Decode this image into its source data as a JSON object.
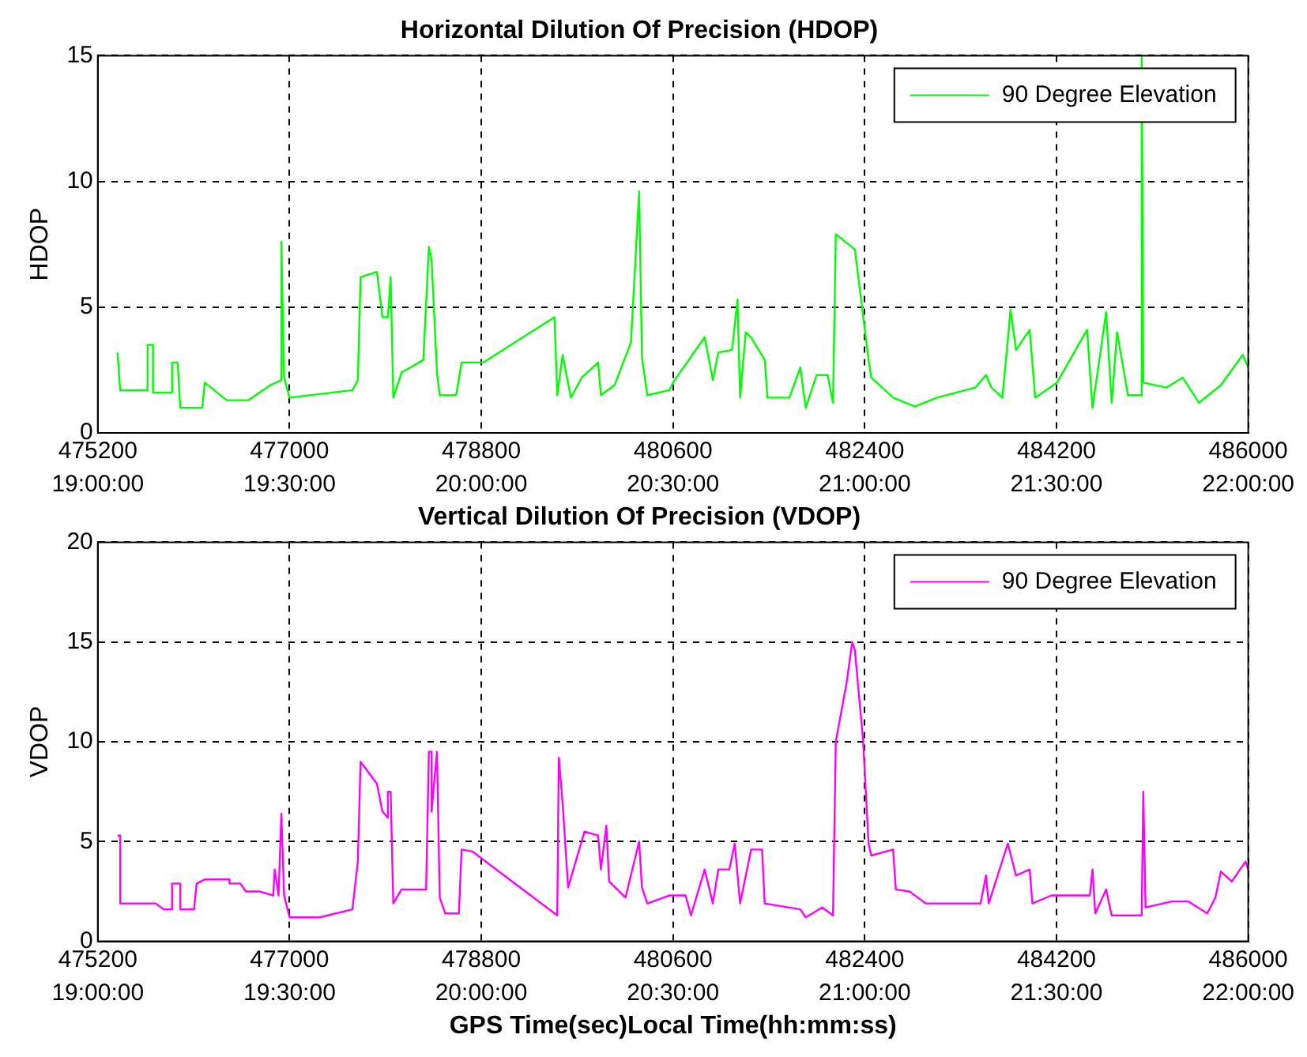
{
  "chart_data": [
    {
      "type": "line",
      "title": "Horizontal Dilution Of Precision (HDOP)",
      "ylabel": "HDOP",
      "xlim": [
        475200,
        486000
      ],
      "xticks": [
        475200,
        477000,
        478800,
        480600,
        482400,
        484200,
        486000
      ],
      "x2lim": [
        19,
        22
      ],
      "x2ticks": [
        {
          "value": 19,
          "label": "19:00:00"
        },
        {
          "value": 19.5,
          "label": "19:30:00"
        },
        {
          "value": 20,
          "label": "20:00:00"
        },
        {
          "value": 20.5,
          "label": "20:30:00"
        },
        {
          "value": 21,
          "label": "21:00:00"
        },
        {
          "value": 21.5,
          "label": "21:30:00"
        },
        {
          "value": 22,
          "label": "22:00:00"
        }
      ],
      "ylim": [
        0,
        15
      ],
      "yticks": [
        0,
        5,
        10,
        15
      ],
      "grid": true,
      "legend": "top right",
      "marker": "none",
      "line_style": "solid",
      "x": [
        475385,
        475410,
        475667,
        475667,
        475718,
        475718,
        475897,
        475897,
        475949,
        475974,
        476179,
        476205,
        476410,
        476615,
        476820,
        476923,
        476923,
        476949,
        477000,
        477590,
        477641,
        477667,
        477820,
        477872,
        477923,
        477949,
        477974,
        478051,
        478256,
        478308,
        478333,
        478384,
        478410,
        478564,
        478615,
        478820,
        479487,
        479513,
        479564,
        479641,
        479743,
        479897,
        479923,
        480051,
        480205,
        480282,
        480308,
        480359,
        480564,
        480615,
        480897,
        480974,
        481025,
        481154,
        481205,
        481230,
        481282,
        481333,
        481461,
        481487,
        481692,
        481795,
        481846,
        481948,
        482051,
        482102,
        482128,
        482307,
        482436,
        482461,
        482666,
        482871,
        483077,
        483436,
        483538,
        483589,
        483692,
        483769,
        483820,
        483948,
        484000,
        484205,
        484487,
        484538,
        484666,
        484718,
        484769,
        484871,
        485000,
        485000,
        485015,
        485230,
        485384,
        485538,
        485743,
        485948,
        486000
      ],
      "series": [
        {
          "name": "90 Degree Elevation",
          "color": "#00ff00",
          "values": [
            3.2,
            1.7,
            1.7,
            3.5,
            3.5,
            1.6,
            1.6,
            2.8,
            2.8,
            1.0,
            1.0,
            2.0,
            1.3,
            1.3,
            1.9,
            2.1,
            7.6,
            2.2,
            1.4,
            1.7,
            2.1,
            6.2,
            6.4,
            4.6,
            4.6,
            6.2,
            1.4,
            2.4,
            2.9,
            7.4,
            6.9,
            2.4,
            1.5,
            1.5,
            2.8,
            2.8,
            4.6,
            1.5,
            3.1,
            1.4,
            2.2,
            2.8,
            1.5,
            1.9,
            3.6,
            9.6,
            3.0,
            1.5,
            1.7,
            2.1,
            3.8,
            2.1,
            3.2,
            3.3,
            5.3,
            1.4,
            4.0,
            3.8,
            2.9,
            1.4,
            1.4,
            2.6,
            1.0,
            2.3,
            2.3,
            1.2,
            7.9,
            7.3,
            2.9,
            2.2,
            1.4,
            1.05,
            1.4,
            1.8,
            2.3,
            1.8,
            1.4,
            4.9,
            3.3,
            4.1,
            1.4,
            2.0,
            4.1,
            1.0,
            4.8,
            1.2,
            4.0,
            1.5,
            1.5,
            15,
            2.0,
            1.8,
            2.2,
            1.2,
            1.9,
            3.1,
            2.6
          ]
        }
      ]
    },
    {
      "type": "line",
      "title": "Vertical Dilution Of Precision (VDOP)",
      "ylabel": "VDOP",
      "xlabel": "GPS Time(sec)Local Time(hh:mm:ss)",
      "xlim": [
        475200,
        486000
      ],
      "xticks": [
        475200,
        477000,
        478800,
        480600,
        482400,
        484200,
        486000
      ],
      "x2lim": [
        19,
        22
      ],
      "x2ticks": [
        {
          "value": 19,
          "label": "19:00:00"
        },
        {
          "value": 19.5,
          "label": "19:30:00"
        },
        {
          "value": 20,
          "label": "20:00:00"
        },
        {
          "value": 20.5,
          "label": "20:30:00"
        },
        {
          "value": 21,
          "label": "21:00:00"
        },
        {
          "value": 21.5,
          "label": "21:30:00"
        },
        {
          "value": 22,
          "label": "22:00:00"
        }
      ],
      "ylim": [
        0,
        20
      ],
      "yticks": [
        0,
        5,
        10,
        15,
        20
      ],
      "grid": true,
      "legend": "top right",
      "marker": "none",
      "line_style": "solid",
      "x": [
        475385,
        475410,
        475410,
        475744,
        475820,
        475897,
        475897,
        475974,
        475974,
        476103,
        476128,
        476205,
        476436,
        476436,
        476538,
        476590,
        476718,
        476846,
        476861,
        476897,
        476923,
        476949,
        477000,
        477282,
        477590,
        477641,
        477667,
        477820,
        477872,
        477923,
        477923,
        477949,
        477974,
        478051,
        478282,
        478308,
        478333,
        478333,
        478384,
        478410,
        478461,
        478590,
        478615,
        478718,
        479513,
        479528,
        479564,
        479615,
        479769,
        479897,
        479923,
        479974,
        480000,
        480077,
        480154,
        480282,
        480308,
        480359,
        480564,
        480718,
        480769,
        480897,
        480974,
        481025,
        481128,
        481179,
        481230,
        481333,
        481436,
        481461,
        481795,
        481846,
        482000,
        482102,
        482128,
        482231,
        482282,
        482307,
        482384,
        482436,
        482461,
        482666,
        482692,
        482820,
        482974,
        483487,
        483538,
        483564,
        483743,
        483820,
        483948,
        483974,
        484153,
        484513,
        484538,
        484564,
        484666,
        484718,
        485000,
        485015,
        485036,
        485282,
        485436,
        485615,
        485692,
        485743,
        485846,
        485974,
        486000
      ],
      "series": [
        {
          "name": "90 Degree Elevation",
          "color": "#ff00ff",
          "values": [
            5.3,
            5.3,
            1.9,
            1.9,
            1.6,
            1.6,
            2.9,
            2.9,
            1.6,
            1.6,
            2.9,
            3.1,
            3.1,
            2.9,
            2.9,
            2.5,
            2.5,
            2.3,
            3.6,
            2.3,
            6.4,
            2.3,
            1.2,
            1.2,
            1.6,
            4.0,
            9.0,
            7.9,
            6.5,
            6.2,
            7.5,
            7.5,
            1.9,
            2.6,
            2.6,
            9.5,
            9.5,
            6.5,
            9.5,
            2.2,
            1.4,
            1.4,
            4.6,
            4.5,
            1.3,
            9.2,
            6.9,
            2.7,
            5.5,
            5.3,
            3.6,
            5.8,
            3.0,
            2.6,
            2.2,
            5.0,
            2.7,
            1.9,
            2.3,
            2.3,
            1.3,
            3.6,
            1.9,
            3.6,
            3.6,
            4.9,
            1.9,
            4.6,
            4.6,
            1.9,
            1.6,
            1.2,
            1.7,
            1.3,
            10.0,
            13.0,
            15.0,
            14.6,
            10.1,
            4.9,
            4.3,
            4.6,
            2.6,
            2.5,
            1.9,
            1.9,
            3.3,
            1.9,
            4.9,
            3.3,
            3.6,
            1.9,
            2.3,
            2.3,
            3.6,
            1.4,
            2.6,
            1.3,
            1.3,
            7.5,
            1.7,
            2.0,
            2.0,
            1.4,
            2.2,
            3.5,
            3.0,
            4.0,
            3.6
          ]
        }
      ]
    }
  ]
}
